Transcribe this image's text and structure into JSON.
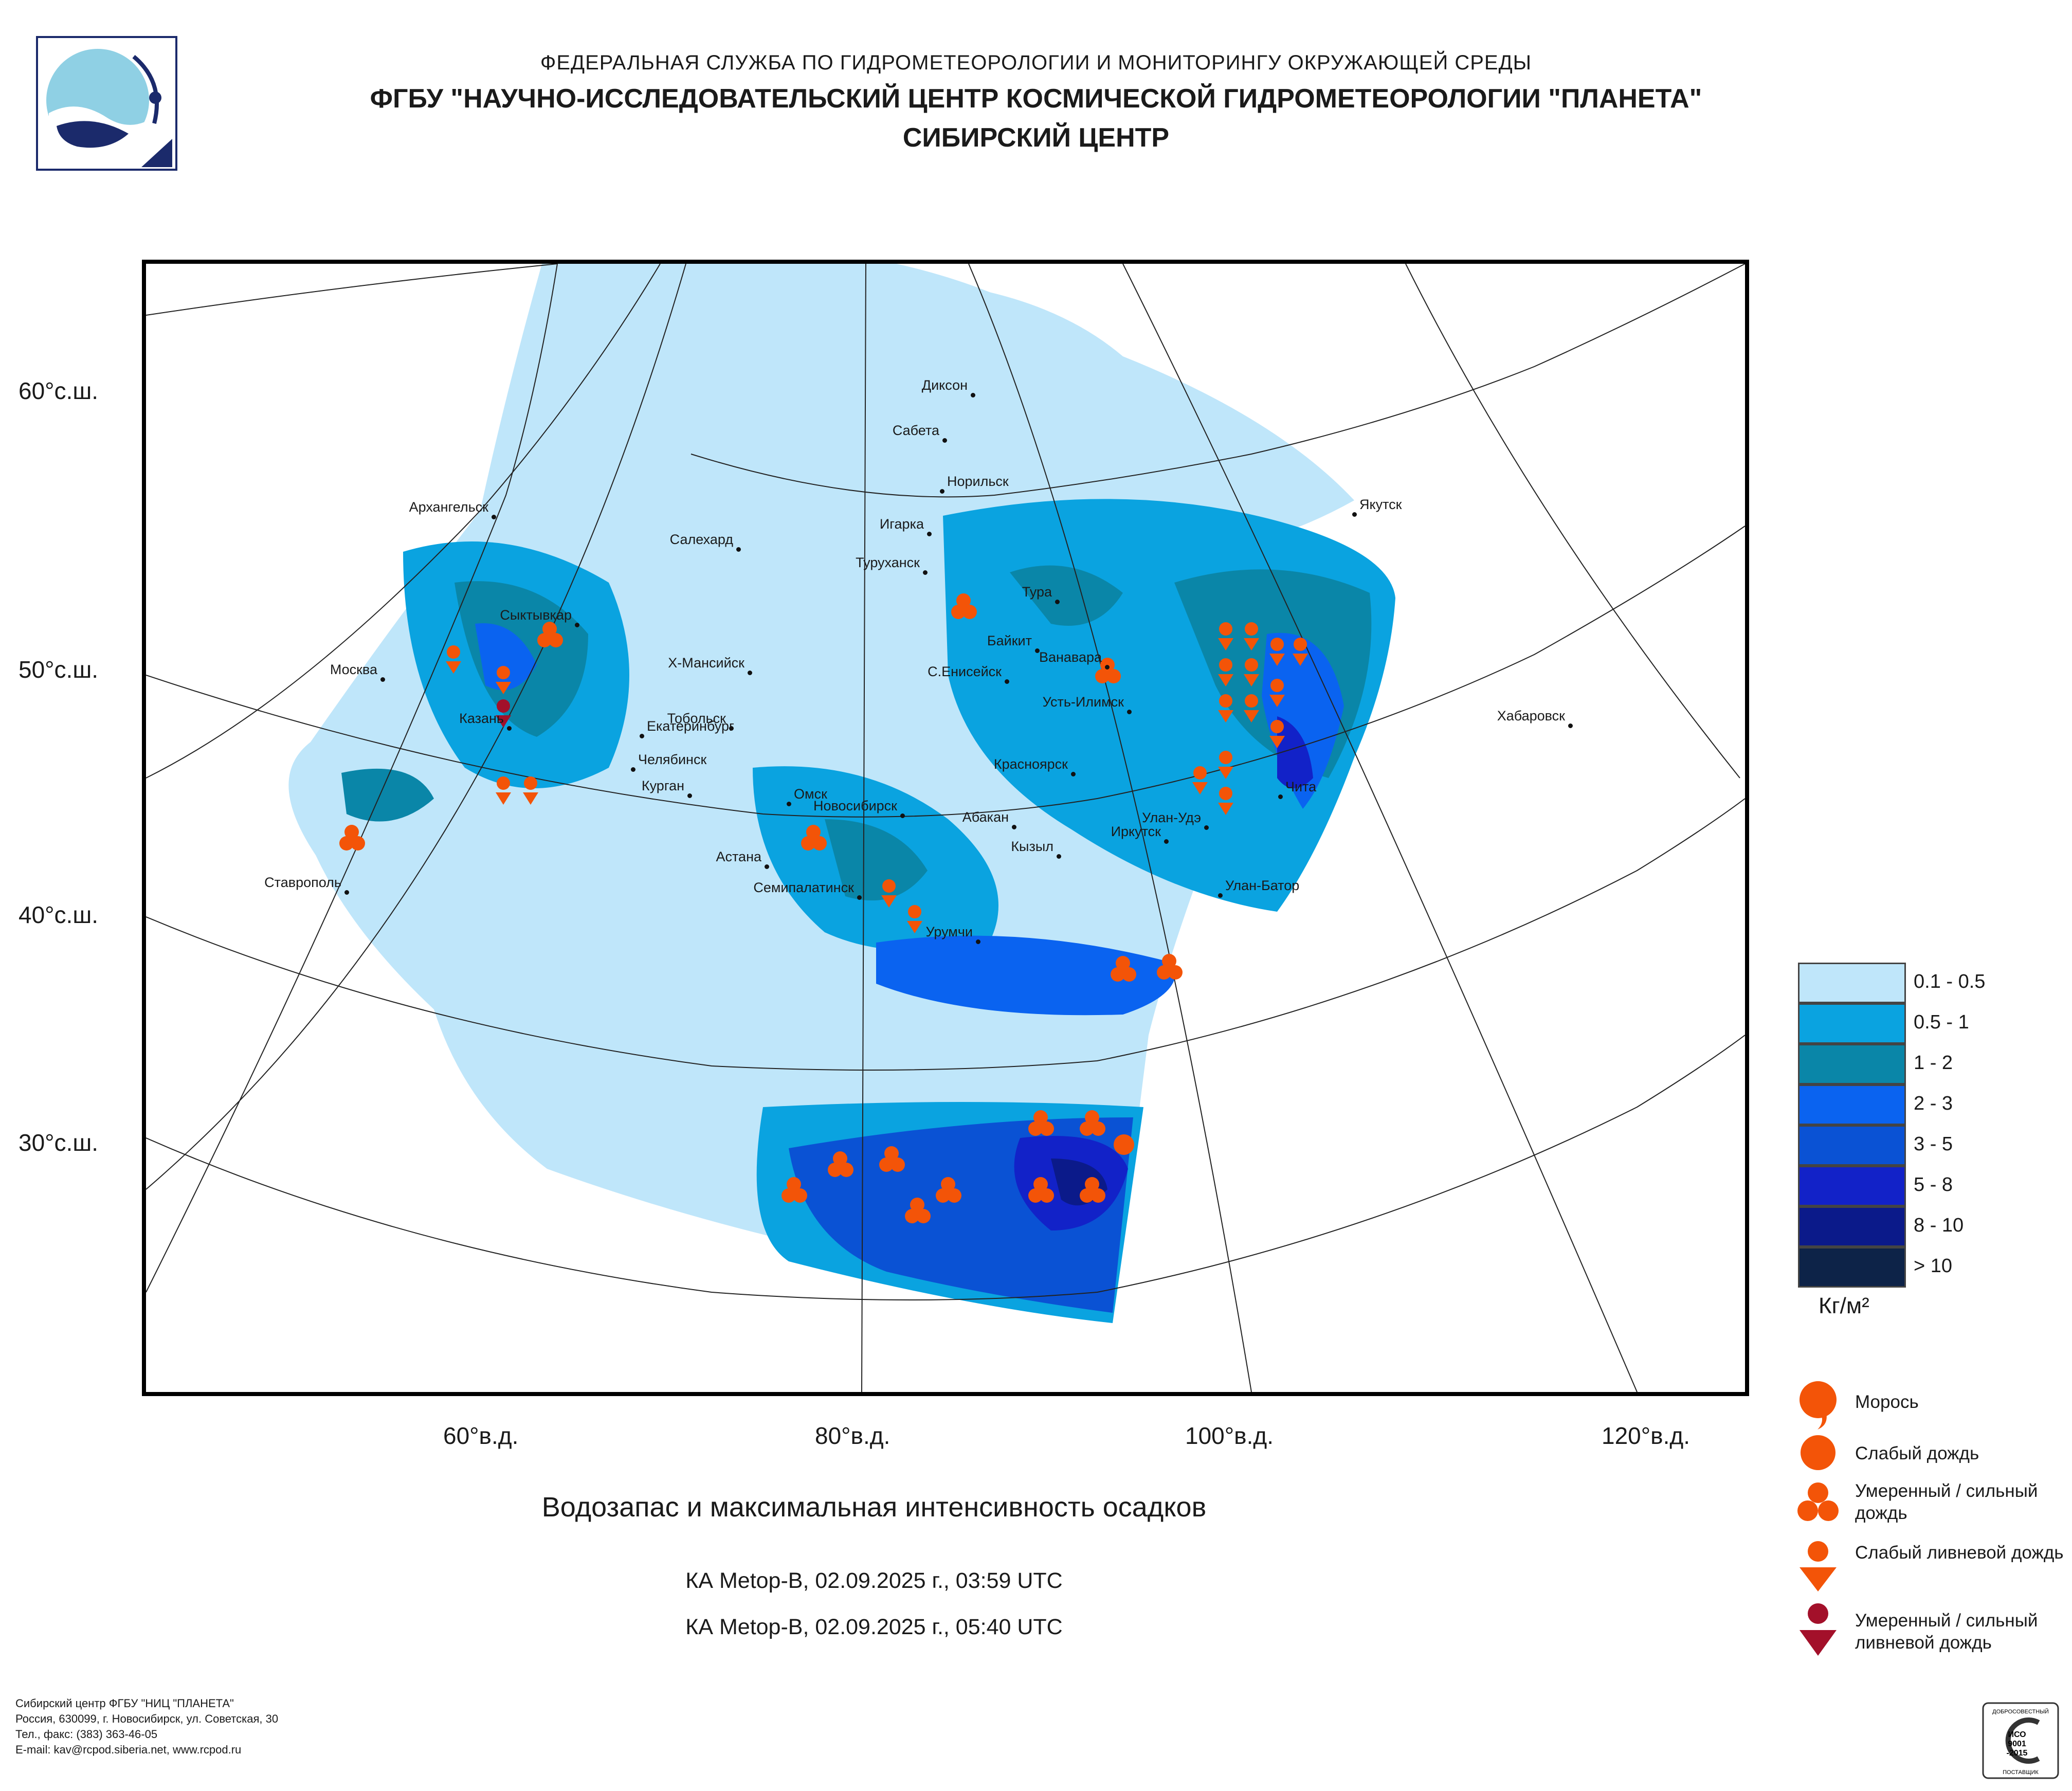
{
  "header": {
    "line1": "ФЕДЕРАЛЬНАЯ СЛУЖБА ПО ГИДРОМЕТЕОРОЛОГИИ И МОНИТОРИНГУ ОКРУЖАЮЩЕЙ СРЕДЫ",
    "line2": "ФГБУ \"НАУЧНО-ИССЛЕДОВАТЕЛЬСКИЙ ЦЕНТР КОСМИЧЕСКОЙ ГИДРОМЕТЕОРОЛОГИИ \"ПЛАНЕТА\"",
    "line3": "СИБИРСКИЙ ЦЕНТР"
  },
  "map": {
    "lat_labels": [
      "60°с.ш.",
      "50°с.ш.",
      "40°с.ш.",
      "30°с.ш."
    ],
    "lon_labels": [
      "60°в.д.",
      "80°в.д.",
      "100°в.д.",
      "120°в.д."
    ],
    "cities": [
      "Диксон",
      "Сабета",
      "Норильск",
      "Якутск",
      "Архангельск",
      "Игарка",
      "Салехард",
      "Туруханск",
      "Тура",
      "Сыктывкар",
      "Байкит",
      "Ванавара",
      "Москва",
      "Х-Мансийск",
      "С.Енисейск",
      "Усть-Илимск",
      "Хабаровск",
      "Казань",
      "Екатеринбург",
      "Тобольск",
      "Челябинск",
      "Курган",
      "Красноярск",
      "Чита",
      "Омск",
      "Новосибирск",
      "Абакан",
      "Улан-Удэ",
      "Иркутск",
      "Кызыл",
      "Астана",
      "Ставрополь",
      "Семипалатинск",
      "Улан-Батор",
      "Урумчи"
    ]
  },
  "title": "Водозапас и максимальная интенсивность осадков",
  "passes": [
    "КА Metop-B, 02.09.2025 г., 03:59 UTC",
    "КА Metop-B, 02.09.2025 г., 05:40 UTC"
  ],
  "legend": {
    "scale": [
      {
        "label": "0.1 - 0.5",
        "color": "#bfe6fa"
      },
      {
        "label": "0.5 - 1",
        "color": "#0aa3e0"
      },
      {
        "label": "1 - 2",
        "color": "#0a86a8"
      },
      {
        "label": "2 - 3",
        "color": "#0a63f0"
      },
      {
        "label": "3 - 5",
        "color": "#0a52d4"
      },
      {
        "label": "5 - 8",
        "color": "#1222c8"
      },
      {
        "label": "8 - 10",
        "color": "#0b1a8a"
      },
      {
        "label": "> 10",
        "color": "#0d2348"
      }
    ],
    "unit": "Кг/м²",
    "precip_types": [
      {
        "label": "Морось",
        "icon": "drizzle-icon"
      },
      {
        "label": "Слабый дождь",
        "icon": "light-rain-icon"
      },
      {
        "label": "Умеренный / сильный дождь",
        "icon": "moderate-rain-icon"
      },
      {
        "label": "Слабый ливневой дождь",
        "icon": "light-shower-icon"
      },
      {
        "label": "Умеренный / сильный ливневой дождь",
        "icon": "heavy-shower-icon"
      }
    ],
    "symbol_color": "#f35408",
    "heavy_symbol_color": "#a3102a"
  },
  "footer": [
    "Сибирский центр ФГБУ \"НИЦ \"ПЛАНЕТА\"",
    "Россия, 630099, г. Новосибирск, ул. Советская, 30",
    "Тел., факс: (383) 363-46-05",
    "E-mail: kav@rcpod.siberia.net, www.rcpod.ru"
  ],
  "certification": {
    "top": "ДОБРОСОВЕСТНЫЙ",
    "line1": "ИСО",
    "line2": "9001",
    "line3": "-2015",
    "bottom": "ПОСТАВЩИК"
  }
}
